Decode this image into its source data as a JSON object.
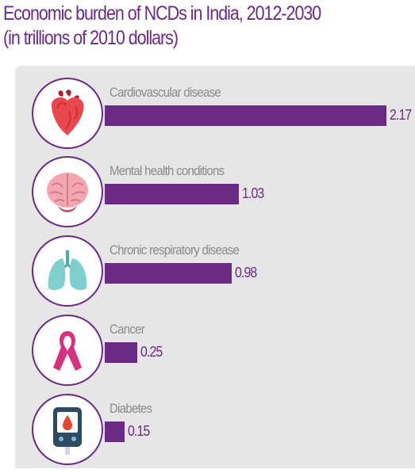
{
  "title_line1": "Economic burden of NCDs in India, 2012-2030",
  "title_line2": "(in trillions of 2010 dollars)",
  "colors": {
    "accent": "#6b2a85",
    "panel": "#e6e6e6",
    "label": "#8a8a8a"
  },
  "chart_data": {
    "type": "bar",
    "orientation": "horizontal",
    "categories": [
      "Cardiovascular disease",
      "Mental health conditions",
      "Chronic respiratory disease",
      "Cancer",
      "Diabetes"
    ],
    "values": [
      2.17,
      1.03,
      0.98,
      0.25,
      0.15
    ],
    "value_labels": [
      "2.17",
      "1.03",
      "0.98",
      "0.25",
      "0.15"
    ],
    "icons": [
      "heart-icon",
      "brain-icon",
      "lungs-icon",
      "cancer-ribbon-icon",
      "glucose-meter-icon"
    ]
  }
}
